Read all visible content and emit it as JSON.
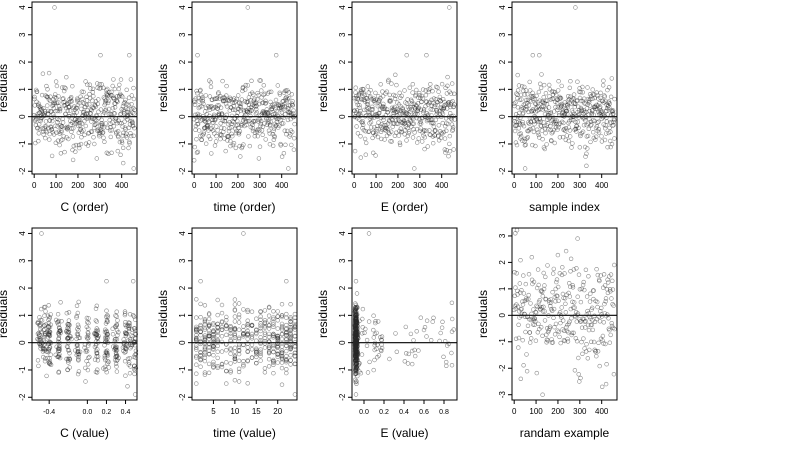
{
  "chart_data": [
    {
      "type": "scatter",
      "xlabel": "C (order)",
      "ylabel": "residuals",
      "xlim": [
        -10,
        470
      ],
      "ylim": [
        -2.1,
        4.2
      ],
      "xticks": [
        0,
        100,
        200,
        300,
        400
      ],
      "yticks": [
        -2,
        -1,
        0,
        1,
        2,
        3,
        4
      ],
      "hline": 0,
      "seed": 11,
      "x_kind": "index",
      "n": 460,
      "outliers": [
        [
          93,
          4.0
        ],
        [
          303,
          2.25
        ],
        [
          435,
          2.25
        ],
        [
          455,
          -1.9
        ],
        [
          407,
          -1.7
        ]
      ]
    },
    {
      "type": "scatter",
      "xlabel": "time (order)",
      "ylabel": "residuals",
      "xlim": [
        -10,
        470
      ],
      "ylim": [
        -2.1,
        4.2
      ],
      "xticks": [
        0,
        100,
        200,
        300,
        400
      ],
      "yticks": [
        -2,
        -1,
        0,
        1,
        2,
        3,
        4
      ],
      "hline": 0,
      "seed": 23,
      "x_kind": "index",
      "n": 460,
      "outliers": [
        [
          245,
          4.0
        ],
        [
          15,
          2.25
        ],
        [
          375,
          2.25
        ],
        [
          0,
          -1.6
        ],
        [
          430,
          -1.9
        ]
      ]
    },
    {
      "type": "scatter",
      "xlabel": "E (order)",
      "ylabel": "residuals",
      "xlim": [
        -10,
        470
      ],
      "ylim": [
        -2.1,
        4.2
      ],
      "xticks": [
        0,
        100,
        200,
        300,
        400
      ],
      "yticks": [
        -2,
        -1,
        0,
        1,
        2,
        3,
        4
      ],
      "hline": 0,
      "seed": 37,
      "x_kind": "index",
      "n": 460,
      "outliers": [
        [
          435,
          4.0
        ],
        [
          240,
          2.25
        ],
        [
          330,
          2.25
        ],
        [
          30,
          -1.5
        ],
        [
          275,
          -1.9
        ]
      ]
    },
    {
      "type": "scatter",
      "xlabel": "sample index",
      "ylabel": "residuals",
      "xlim": [
        -10,
        470
      ],
      "ylim": [
        -2.1,
        4.2
      ],
      "xticks": [
        0,
        100,
        200,
        300,
        400
      ],
      "yticks": [
        -2,
        -1,
        0,
        1,
        2,
        3,
        4
      ],
      "hline": 0,
      "seed": 41,
      "x_kind": "index",
      "n": 460,
      "outliers": [
        [
          280,
          4.0
        ],
        [
          85,
          2.25
        ],
        [
          115,
          2.25
        ],
        [
          50,
          -1.9
        ],
        [
          330,
          -1.8
        ]
      ]
    },
    {
      "type": "scatter",
      "xlabel": "C (value)",
      "ylabel": "residuals",
      "xlim": [
        -0.58,
        0.52
      ],
      "ylim": [
        -2.1,
        4.2
      ],
      "xticks": [
        -0.4,
        0.0,
        0.2,
        0.4
      ],
      "xtick_labels": [
        "-0.4",
        "0.0",
        "0.2",
        "0.4"
      ],
      "small_xticks": true,
      "yticks": [
        -2,
        -1,
        0,
        1,
        2,
        3,
        4
      ],
      "hline": 0,
      "seed": 53,
      "x_kind": "clusters",
      "centers": [
        -0.5,
        -0.45,
        -0.4,
        -0.3,
        -0.2,
        -0.1,
        0.0,
        0.1,
        0.2,
        0.3,
        0.4,
        0.45,
        0.5
      ],
      "spread": 0.012,
      "n": 460,
      "outliers": [
        [
          -0.48,
          4.0
        ],
        [
          0.2,
          2.25
        ],
        [
          0.48,
          2.25
        ],
        [
          0.5,
          -1.9
        ],
        [
          0.42,
          -1.6
        ]
      ]
    },
    {
      "type": "scatter",
      "xlabel": "time (value)",
      "ylabel": "residuals",
      "xlim": [
        0,
        24.5
      ],
      "ylim": [
        -2.1,
        4.2
      ],
      "xticks": [
        5,
        10,
        15,
        20
      ],
      "yticks": [
        -2,
        -1,
        0,
        1,
        2,
        3,
        4
      ],
      "hline": 0,
      "seed": 67,
      "x_kind": "discrete",
      "levels": [
        1,
        2,
        3,
        4,
        5,
        6,
        7,
        8,
        9,
        10,
        11,
        12,
        13,
        14,
        15,
        16,
        17,
        18,
        19,
        20,
        21,
        22,
        23,
        24
      ],
      "n": 460,
      "outliers": [
        [
          12,
          4.0
        ],
        [
          2,
          2.25
        ],
        [
          22,
          2.25
        ],
        [
          24,
          -1.9
        ],
        [
          1,
          -1.5
        ]
      ]
    },
    {
      "type": "scatter",
      "xlabel": "E (value)",
      "ylabel": "residuals",
      "xlim": [
        -0.12,
        0.93
      ],
      "ylim": [
        -2.1,
        4.2
      ],
      "xticks": [
        0.0,
        0.2,
        0.4,
        0.6,
        0.8
      ],
      "xtick_labels": [
        "0.0",
        "0.2",
        "0.4",
        "0.6",
        "0.8"
      ],
      "small_xticks": true,
      "yticks": [
        -2,
        -1,
        0,
        1,
        2,
        3,
        4
      ],
      "hline": 0,
      "seed": 79,
      "x_kind": "skewed",
      "n": 460,
      "outliers": [
        [
          0.05,
          4.0
        ],
        [
          -0.08,
          2.25
        ],
        [
          -0.08,
          -1.9
        ],
        [
          -0.07,
          1.8
        ],
        [
          0.88,
          0.4
        ]
      ]
    },
    {
      "type": "scatter",
      "xlabel": "randam example",
      "ylabel": "residuals",
      "xlim": [
        -10,
        470
      ],
      "ylim": [
        -3.2,
        3.3
      ],
      "xticks": [
        0,
        100,
        200,
        300,
        400
      ],
      "yticks": [
        -3,
        -2,
        -1,
        0,
        1,
        2,
        3
      ],
      "hline": 0,
      "seed": 97,
      "x_kind": "index",
      "random": true,
      "n": 320,
      "outliers": [
        [
          5,
          3.1
        ],
        [
          290,
          2.9
        ],
        [
          130,
          -3.0
        ],
        [
          30,
          -2.4
        ],
        [
          420,
          -2.6
        ]
      ]
    }
  ]
}
